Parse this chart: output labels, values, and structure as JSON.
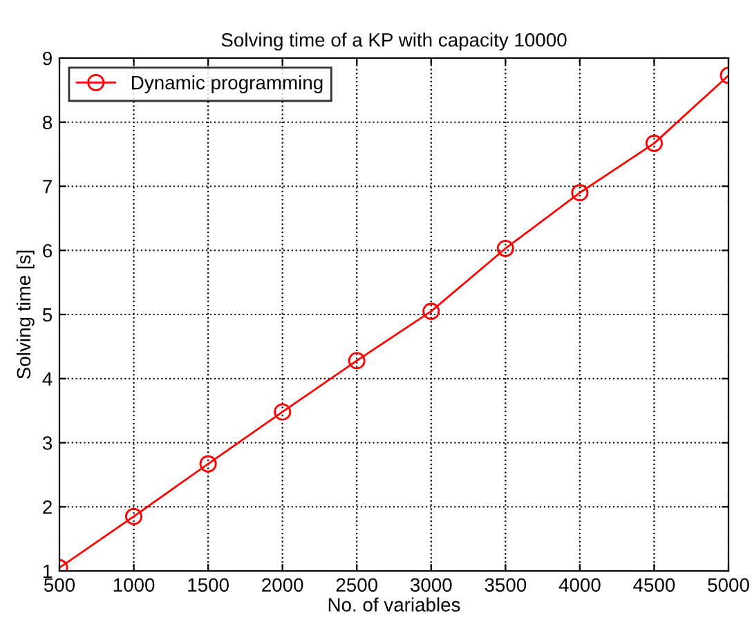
{
  "chart_data": {
    "type": "line",
    "title": "Solving time of a KP with capacity 10000",
    "xlabel": "No. of variables",
    "ylabel": "Solving time [s]",
    "x": [
      500,
      1000,
      1500,
      2000,
      2500,
      3000,
      3500,
      4000,
      4500,
      5000
    ],
    "series": [
      {
        "name": "Dynamic programming",
        "color": "#ff0000",
        "values": [
          1.05,
          1.85,
          2.67,
          3.48,
          4.28,
          5.05,
          6.03,
          6.9,
          7.67,
          8.73
        ]
      }
    ],
    "xlim": [
      500,
      5000
    ],
    "ylim": [
      1,
      9
    ],
    "xticks": [
      500,
      1000,
      1500,
      2000,
      2500,
      3000,
      3500,
      4000,
      4500,
      5000
    ],
    "yticks": [
      1,
      2,
      3,
      4,
      5,
      6,
      7,
      8,
      9
    ],
    "grid": true,
    "legend": "top left",
    "marker": "circle",
    "line_style": "solid"
  }
}
